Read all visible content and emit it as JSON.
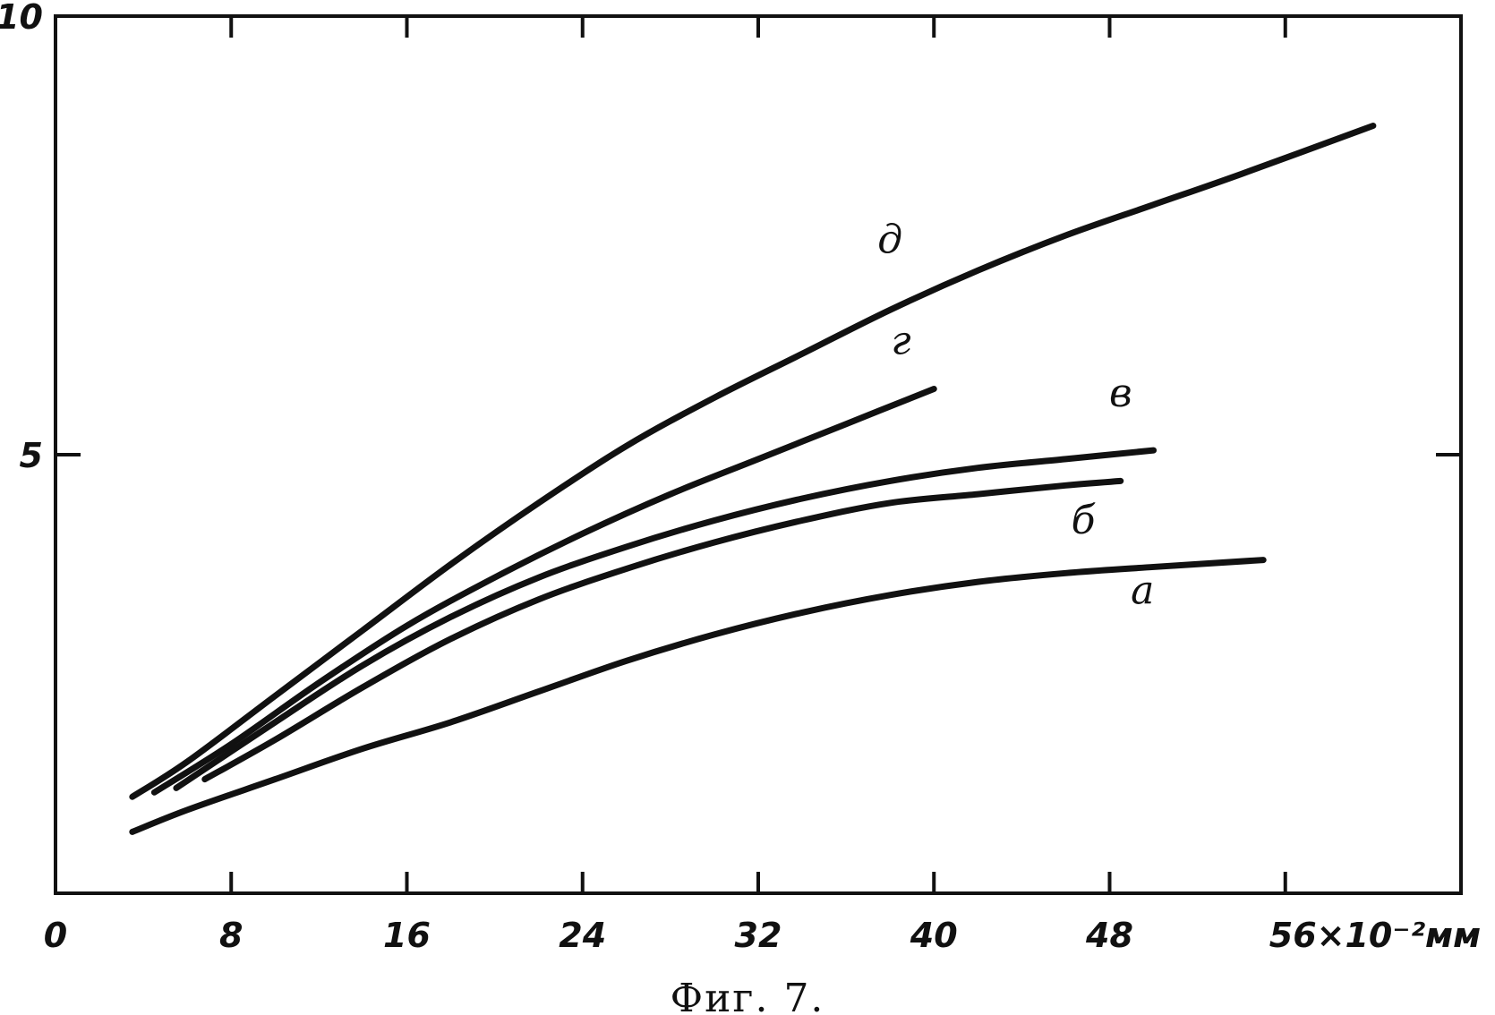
{
  "caption": "Фиг. 7.",
  "chart_data": {
    "type": "line",
    "title": "",
    "xlabel": "",
    "ylabel": "",
    "x_unit_label": "56×10⁻²мм",
    "xlim": [
      0,
      64
    ],
    "ylim": [
      0,
      10
    ],
    "x_ticks": [
      {
        "value": 0,
        "label": "0"
      },
      {
        "value": 8,
        "label": "8"
      },
      {
        "value": 16,
        "label": "16"
      },
      {
        "value": 24,
        "label": "24"
      },
      {
        "value": 32,
        "label": "32"
      },
      {
        "value": 40,
        "label": "40"
      },
      {
        "value": 48,
        "label": "48"
      },
      {
        "value": 56,
        "label": "56×10⁻²мм"
      }
    ],
    "y_ticks": [
      {
        "value": 5,
        "label": "5"
      },
      {
        "value": 10,
        "label": "10"
      }
    ],
    "grid": false,
    "line_color": "#111111",
    "series": [
      {
        "name": "д",
        "x": [
          3.5,
          6,
          10,
          14,
          18,
          22,
          26,
          30,
          34,
          38,
          42,
          46,
          50,
          54,
          60
        ],
        "y": [
          1.1,
          1.5,
          2.25,
          3.0,
          3.75,
          4.45,
          5.1,
          5.65,
          6.15,
          6.65,
          7.1,
          7.5,
          7.85,
          8.2,
          8.75
        ],
        "label_at": {
          "x": 38,
          "y": 7.3
        }
      },
      {
        "name": "г",
        "x": [
          4.5,
          8,
          12,
          16,
          20,
          24,
          28,
          32,
          36,
          40
        ],
        "y": [
          1.15,
          1.7,
          2.4,
          3.05,
          3.6,
          4.1,
          4.55,
          4.95,
          5.35,
          5.75
        ],
        "label_at": {
          "x": 38.5,
          "y": 6.15
        }
      },
      {
        "name": "в",
        "x": [
          5.5,
          10,
          14,
          18,
          22,
          26,
          30,
          34,
          38,
          42,
          46,
          50
        ],
        "y": [
          1.2,
          1.95,
          2.6,
          3.15,
          3.6,
          3.95,
          4.25,
          4.5,
          4.7,
          4.85,
          4.95,
          5.05
        ],
        "label_at": {
          "x": 48.5,
          "y": 5.55
        }
      },
      {
        "name": "б",
        "x": [
          6.8,
          10,
          14,
          18,
          22,
          26,
          30,
          34,
          38,
          42,
          46,
          48.5
        ],
        "y": [
          1.3,
          1.75,
          2.35,
          2.9,
          3.35,
          3.7,
          4.0,
          4.25,
          4.45,
          4.55,
          4.65,
          4.7
        ],
        "label_at": {
          "x": 46.8,
          "y": 4.1
        }
      },
      {
        "name": "а",
        "x": [
          3.5,
          6,
          10,
          14,
          18,
          22,
          26,
          30,
          34,
          38,
          42,
          46,
          50,
          55
        ],
        "y": [
          0.7,
          0.95,
          1.3,
          1.65,
          1.95,
          2.3,
          2.65,
          2.95,
          3.2,
          3.4,
          3.55,
          3.65,
          3.72,
          3.8
        ],
        "label_at": {
          "x": 49.5,
          "y": 3.3
        }
      }
    ]
  }
}
